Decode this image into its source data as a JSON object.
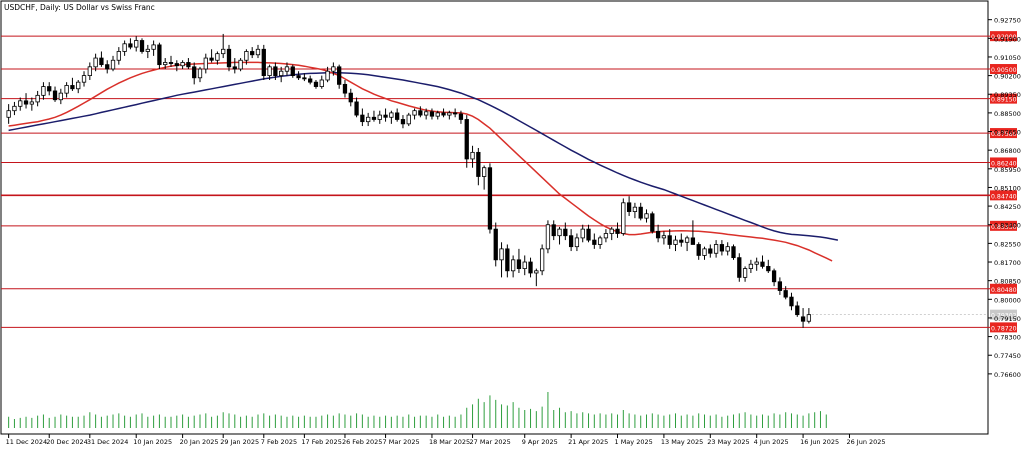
{
  "chart_data": {
    "type": "candlestick",
    "title": "USDCHF, Daily:  US Dollar vs Swiss Franc",
    "grid": false,
    "colors": {
      "frame": "#000000",
      "candle": "#000000",
      "volume": "#2e9e3e",
      "ma_fast": "#d9302a",
      "ma_slow": "#1b1d6b",
      "hline": "#c4141b",
      "hline_label_bg": "#e8251f",
      "hline_label_text": "#ffffff"
    },
    "y_axis": {
      "range": [
        0.755,
        0.931
      ],
      "ticks": [
        "0.92750",
        "0.91900",
        "0.91050",
        "0.90200",
        "0.89350",
        "0.88500",
        "0.87650",
        "0.86800",
        "0.85950",
        "0.85100",
        "0.84250",
        "0.83400",
        "0.82550",
        "0.81700",
        "0.80850",
        "0.80000",
        "0.79150",
        "0.78300",
        "0.77450",
        "0.76600"
      ]
    },
    "x_axis": {
      "ticks": [
        {
          "label": "11 Dec 2024",
          "i": 0
        },
        {
          "label": "20 Dec 2024",
          "i": 7
        },
        {
          "label": "31 Dec 2024",
          "i": 14
        },
        {
          "label": "10 Jan 2025",
          "i": 22
        },
        {
          "label": "20 Jan 2025",
          "i": 30
        },
        {
          "label": "29 Jan 2025",
          "i": 37
        },
        {
          "label": "7 Feb 2025",
          "i": 44
        },
        {
          "label": "17 Feb 2025",
          "i": 51
        },
        {
          "label": "26 Feb 2025",
          "i": 58
        },
        {
          "label": "7 Mar 2025",
          "i": 65
        },
        {
          "label": "18 Mar 2025",
          "i": 73
        },
        {
          "label": "27 Mar 2025",
          "i": 80
        },
        {
          "label": "9 Apr 2025",
          "i": 89
        },
        {
          "label": "21 Apr 2025",
          "i": 97
        },
        {
          "label": "1 May 2025",
          "i": 105
        },
        {
          "label": "13 May 2025",
          "i": 113
        },
        {
          "label": "23 May 2025",
          "i": 121
        },
        {
          "label": "4 Jun 2025",
          "i": 129
        },
        {
          "label": "16 Jun 2025",
          "i": 137
        },
        {
          "label": "26 Jun 2025",
          "i": 145
        }
      ]
    },
    "horizontal_levels": [
      {
        "value": 0.92,
        "label": "0.92000"
      },
      {
        "value": 0.905,
        "label": "0.90500"
      },
      {
        "value": 0.8915,
        "label": "0.89150"
      },
      {
        "value": 0.8758,
        "label": "0.87580"
      },
      {
        "value": 0.8624,
        "label": "0.86240"
      },
      {
        "value": 0.8474,
        "label": "0.84740"
      },
      {
        "value": 0.8335,
        "label": "0.83350"
      },
      {
        "value": 0.8048,
        "label": "0.80480"
      },
      {
        "value": 0.7872,
        "label": "0.78720"
      }
    ],
    "current_price": {
      "value": 0.793,
      "label": "0.79302"
    },
    "ohlc": [
      [
        0.883,
        0.889,
        0.88,
        0.886
      ],
      [
        0.886,
        0.89,
        0.884,
        0.888
      ],
      [
        0.888,
        0.892,
        0.886,
        0.8905
      ],
      [
        0.8905,
        0.894,
        0.887,
        0.889
      ],
      [
        0.889,
        0.892,
        0.886,
        0.89
      ],
      [
        0.89,
        0.895,
        0.888,
        0.893
      ],
      [
        0.893,
        0.899,
        0.891,
        0.897
      ],
      [
        0.897,
        0.899,
        0.893,
        0.895
      ],
      [
        0.895,
        0.897,
        0.89,
        0.891
      ],
      [
        0.891,
        0.896,
        0.889,
        0.894
      ],
      [
        0.894,
        0.899,
        0.892,
        0.8975
      ],
      [
        0.8975,
        0.901,
        0.895,
        0.896
      ],
      [
        0.896,
        0.9,
        0.894,
        0.899
      ],
      [
        0.899,
        0.904,
        0.897,
        0.902
      ],
      [
        0.902,
        0.908,
        0.9,
        0.906
      ],
      [
        0.906,
        0.912,
        0.904,
        0.91
      ],
      [
        0.91,
        0.913,
        0.906,
        0.907
      ],
      [
        0.907,
        0.909,
        0.903,
        0.905
      ],
      [
        0.905,
        0.911,
        0.904,
        0.909
      ],
      [
        0.909,
        0.915,
        0.907,
        0.913
      ],
      [
        0.913,
        0.918,
        0.911,
        0.9165
      ],
      [
        0.9165,
        0.919,
        0.914,
        0.915
      ],
      [
        0.915,
        0.92,
        0.913,
        0.918
      ],
      [
        0.918,
        0.919,
        0.912,
        0.913
      ],
      [
        0.913,
        0.916,
        0.91,
        0.914
      ],
      [
        0.914,
        0.918,
        0.911,
        0.916
      ],
      [
        0.916,
        0.917,
        0.905,
        0.907
      ],
      [
        0.907,
        0.91,
        0.905,
        0.908
      ],
      [
        0.908,
        0.911,
        0.906,
        0.9075
      ],
      [
        0.9075,
        0.909,
        0.904,
        0.9065
      ],
      [
        0.9065,
        0.909,
        0.905,
        0.908
      ],
      [
        0.908,
        0.91,
        0.905,
        0.906
      ],
      [
        0.906,
        0.908,
        0.898,
        0.901
      ],
      [
        0.901,
        0.906,
        0.899,
        0.905
      ],
      [
        0.905,
        0.912,
        0.903,
        0.91
      ],
      [
        0.91,
        0.914,
        0.908,
        0.909
      ],
      [
        0.909,
        0.913,
        0.907,
        0.912
      ],
      [
        0.912,
        0.921,
        0.91,
        0.914
      ],
      [
        0.914,
        0.916,
        0.904,
        0.906
      ],
      [
        0.906,
        0.91,
        0.903,
        0.905
      ],
      [
        0.905,
        0.91,
        0.904,
        0.909
      ],
      [
        0.909,
        0.914,
        0.907,
        0.913
      ],
      [
        0.913,
        0.915,
        0.91,
        0.9115
      ],
      [
        0.9115,
        0.916,
        0.91,
        0.914
      ],
      [
        0.914,
        0.916,
        0.9,
        0.902
      ],
      [
        0.902,
        0.907,
        0.9,
        0.906
      ],
      [
        0.906,
        0.908,
        0.9,
        0.902
      ],
      [
        0.902,
        0.906,
        0.899,
        0.904
      ],
      [
        0.904,
        0.908,
        0.902,
        0.906
      ],
      [
        0.906,
        0.907,
        0.901,
        0.902
      ],
      [
        0.902,
        0.904,
        0.9,
        0.901
      ],
      [
        0.901,
        0.903,
        0.8995,
        0.9005
      ],
      [
        0.9005,
        0.902,
        0.898,
        0.899
      ],
      [
        0.899,
        0.9,
        0.896,
        0.897
      ],
      [
        0.897,
        0.902,
        0.896,
        0.9
      ],
      [
        0.9,
        0.906,
        0.899,
        0.904
      ],
      [
        0.904,
        0.908,
        0.902,
        0.906
      ],
      [
        0.906,
        0.907,
        0.896,
        0.898
      ],
      [
        0.898,
        0.9,
        0.892,
        0.894
      ],
      [
        0.894,
        0.896,
        0.888,
        0.89
      ],
      [
        0.89,
        0.892,
        0.883,
        0.884
      ],
      [
        0.884,
        0.887,
        0.879,
        0.881
      ],
      [
        0.881,
        0.885,
        0.879,
        0.883
      ],
      [
        0.883,
        0.886,
        0.881,
        0.882
      ],
      [
        0.882,
        0.886,
        0.88,
        0.884
      ],
      [
        0.884,
        0.887,
        0.881,
        0.883
      ],
      [
        0.883,
        0.886,
        0.88,
        0.885
      ],
      [
        0.885,
        0.887,
        0.881,
        0.882
      ],
      [
        0.882,
        0.884,
        0.878,
        0.88
      ],
      [
        0.88,
        0.885,
        0.879,
        0.884
      ],
      [
        0.884,
        0.887,
        0.882,
        0.886
      ],
      [
        0.886,
        0.888,
        0.883,
        0.884
      ],
      [
        0.884,
        0.887,
        0.882,
        0.8855
      ],
      [
        0.8855,
        0.887,
        0.882,
        0.8835
      ],
      [
        0.8835,
        0.886,
        0.882,
        0.885
      ],
      [
        0.885,
        0.887,
        0.883,
        0.884
      ],
      [
        0.884,
        0.886,
        0.882,
        0.885
      ],
      [
        0.885,
        0.887,
        0.883,
        0.8845
      ],
      [
        0.8845,
        0.886,
        0.88,
        0.882
      ],
      [
        0.882,
        0.884,
        0.86,
        0.864
      ],
      [
        0.864,
        0.87,
        0.86,
        0.867
      ],
      [
        0.867,
        0.869,
        0.852,
        0.856
      ],
      [
        0.856,
        0.861,
        0.85,
        0.86
      ],
      [
        0.86,
        0.862,
        0.83,
        0.832
      ],
      [
        0.832,
        0.835,
        0.815,
        0.818
      ],
      [
        0.818,
        0.826,
        0.81,
        0.823
      ],
      [
        0.823,
        0.825,
        0.81,
        0.813
      ],
      [
        0.813,
        0.82,
        0.81,
        0.818
      ],
      [
        0.818,
        0.823,
        0.812,
        0.814
      ],
      [
        0.814,
        0.82,
        0.811,
        0.817
      ],
      [
        0.817,
        0.819,
        0.81,
        0.812
      ],
      [
        0.812,
        0.814,
        0.806,
        0.813
      ],
      [
        0.813,
        0.825,
        0.811,
        0.823
      ],
      [
        0.823,
        0.836,
        0.821,
        0.834
      ],
      [
        0.834,
        0.836,
        0.827,
        0.829
      ],
      [
        0.829,
        0.833,
        0.825,
        0.832
      ],
      [
        0.832,
        0.835,
        0.827,
        0.829
      ],
      [
        0.829,
        0.832,
        0.822,
        0.824
      ],
      [
        0.824,
        0.83,
        0.822,
        0.828
      ],
      [
        0.828,
        0.834,
        0.826,
        0.832
      ],
      [
        0.832,
        0.834,
        0.826,
        0.827
      ],
      [
        0.827,
        0.83,
        0.823,
        0.825
      ],
      [
        0.825,
        0.829,
        0.823,
        0.828
      ],
      [
        0.828,
        0.832,
        0.826,
        0.83
      ],
      [
        0.83,
        0.833,
        0.827,
        0.832
      ],
      [
        0.832,
        0.835,
        0.828,
        0.83
      ],
      [
        0.83,
        0.846,
        0.829,
        0.844
      ],
      [
        0.844,
        0.847,
        0.838,
        0.84
      ],
      [
        0.84,
        0.844,
        0.837,
        0.842
      ],
      [
        0.842,
        0.844,
        0.836,
        0.837
      ],
      [
        0.837,
        0.841,
        0.835,
        0.839
      ],
      [
        0.839,
        0.84,
        0.83,
        0.831
      ],
      [
        0.831,
        0.834,
        0.826,
        0.828
      ],
      [
        0.828,
        0.831,
        0.825,
        0.829
      ],
      [
        0.829,
        0.832,
        0.823,
        0.825
      ],
      [
        0.825,
        0.829,
        0.822,
        0.827
      ],
      [
        0.827,
        0.83,
        0.824,
        0.826
      ],
      [
        0.826,
        0.829,
        0.822,
        0.828
      ],
      [
        0.828,
        0.836,
        0.826,
        0.825
      ],
      [
        0.825,
        0.826,
        0.818,
        0.82
      ],
      [
        0.82,
        0.824,
        0.818,
        0.823
      ],
      [
        0.823,
        0.825,
        0.819,
        0.821
      ],
      [
        0.821,
        0.827,
        0.819,
        0.825
      ],
      [
        0.825,
        0.827,
        0.82,
        0.822
      ],
      [
        0.822,
        0.826,
        0.82,
        0.824
      ],
      [
        0.824,
        0.825,
        0.818,
        0.819
      ],
      [
        0.819,
        0.821,
        0.808,
        0.81
      ],
      [
        0.81,
        0.815,
        0.808,
        0.814
      ],
      [
        0.814,
        0.818,
        0.812,
        0.816
      ],
      [
        0.816,
        0.819,
        0.813,
        0.817
      ],
      [
        0.817,
        0.82,
        0.814,
        0.815
      ],
      [
        0.815,
        0.818,
        0.812,
        0.813
      ],
      [
        0.813,
        0.814,
        0.806,
        0.808
      ],
      [
        0.808,
        0.81,
        0.802,
        0.804
      ],
      [
        0.804,
        0.806,
        0.8,
        0.801
      ],
      [
        0.801,
        0.803,
        0.795,
        0.797
      ],
      [
        0.797,
        0.799,
        0.792,
        0.793
      ],
      [
        0.792,
        0.796,
        0.787,
        0.79
      ],
      [
        0.79,
        0.796,
        0.789,
        0.793
      ]
    ],
    "ma_fast": [
      0.879,
      0.8794,
      0.8798,
      0.8802,
      0.8806,
      0.881,
      0.8816,
      0.8822,
      0.883,
      0.884,
      0.8852,
      0.8866,
      0.888,
      0.8895,
      0.891,
      0.8926,
      0.8942,
      0.8958,
      0.8972,
      0.8986,
      0.8998,
      0.901,
      0.902,
      0.903,
      0.9038,
      0.9045,
      0.9052,
      0.9058,
      0.9063,
      0.9067,
      0.907,
      0.9072,
      0.9073,
      0.9074,
      0.9075,
      0.9076,
      0.9077,
      0.9078,
      0.9079,
      0.908,
      0.908,
      0.908,
      0.908,
      0.908,
      0.9079,
      0.9078,
      0.9077,
      0.9075,
      0.9073,
      0.907,
      0.9067,
      0.9063,
      0.9058,
      0.9053,
      0.9048,
      0.904,
      0.903,
      0.902,
      0.9005,
      0.899,
      0.8975,
      0.896,
      0.8948,
      0.8935,
      0.8925,
      0.8915,
      0.8905,
      0.8898,
      0.889,
      0.8882,
      0.8875,
      0.8868,
      0.8862,
      0.8858,
      0.8855,
      0.8853,
      0.8852,
      0.8851,
      0.885,
      0.8845,
      0.8835,
      0.882,
      0.88,
      0.878,
      0.8755,
      0.873,
      0.8705,
      0.868,
      0.8655,
      0.863,
      0.8605,
      0.858,
      0.8555,
      0.853,
      0.8505,
      0.848,
      0.846,
      0.844,
      0.842,
      0.84,
      0.838,
      0.8362,
      0.8345,
      0.833,
      0.8318,
      0.8308,
      0.83,
      0.8295,
      0.8295,
      0.8298,
      0.8302,
      0.8306,
      0.8308,
      0.831,
      0.8311,
      0.8312,
      0.8313,
      0.8312,
      0.8311,
      0.831,
      0.8308,
      0.8306,
      0.8303,
      0.83,
      0.8296,
      0.8293,
      0.829,
      0.8287,
      0.8284,
      0.8281,
      0.8278,
      0.8274,
      0.827,
      0.8265,
      0.826,
      0.8252,
      0.8245,
      0.8235,
      0.8225,
      0.8212,
      0.82,
      0.8188,
      0.8175
    ],
    "ma_slow_start_index": 0,
    "ma_slow": [
      0.877,
      0.8775,
      0.878,
      0.8785,
      0.879,
      0.8795,
      0.88,
      0.8805,
      0.881,
      0.8815,
      0.882,
      0.8825,
      0.883,
      0.8835,
      0.884,
      0.8846,
      0.8852,
      0.8858,
      0.8864,
      0.887,
      0.8876,
      0.8882,
      0.8888,
      0.8894,
      0.89,
      0.8906,
      0.8912,
      0.8918,
      0.8924,
      0.893,
      0.8935,
      0.894,
      0.8945,
      0.895,
      0.8955,
      0.896,
      0.8965,
      0.897,
      0.8975,
      0.898,
      0.8985,
      0.899,
      0.8995,
      0.9,
      0.9005,
      0.9009,
      0.9013,
      0.9017,
      0.902,
      0.9023,
      0.9026,
      0.9028,
      0.903,
      0.9031,
      0.9032,
      0.9033,
      0.9033,
      0.9033,
      0.9032,
      0.9031,
      0.9029,
      0.9027,
      0.9024,
      0.902,
      0.9016,
      0.9012,
      0.9008,
      0.9004,
      0.9,
      0.8995,
      0.899,
      0.8985,
      0.898,
      0.8975,
      0.897,
      0.8963,
      0.8956,
      0.8948,
      0.894,
      0.893,
      0.892,
      0.891,
      0.8898,
      0.8885,
      0.8872,
      0.8858,
      0.8844,
      0.883,
      0.8815,
      0.88,
      0.8785,
      0.877,
      0.8755,
      0.874,
      0.8725,
      0.871,
      0.8695,
      0.868,
      0.8666,
      0.8652,
      0.8638,
      0.8625,
      0.8612,
      0.86,
      0.8588,
      0.8576,
      0.8565,
      0.8554,
      0.8544,
      0.8534,
      0.8525,
      0.8516,
      0.8508,
      0.85,
      0.849,
      0.848,
      0.847,
      0.846,
      0.845,
      0.844,
      0.843,
      0.842,
      0.841,
      0.84,
      0.839,
      0.838,
      0.837,
      0.836,
      0.835,
      0.834,
      0.833,
      0.832,
      0.8312,
      0.8305,
      0.83,
      0.8296,
      0.8294,
      0.8292,
      0.829,
      0.8287,
      0.8284,
      0.828,
      0.8275,
      0.827
    ],
    "volume": [
      1,
      0.8,
      0.9,
      1,
      0.9,
      1.1,
      1.2,
      0.9,
      1,
      1.2,
      1.1,
      1,
      1,
      1.1,
      1.4,
      1.2,
      1,
      1.1,
      1.2,
      1.3,
      1.1,
      1,
      1.2,
      1.3,
      1,
      1.1,
      1.2,
      1,
      1,
      1.1,
      1.2,
      1,
      1.1,
      1.2,
      1.3,
      1,
      1.1,
      1.4,
      1.3,
      1.2,
      1,
      1.1,
      1,
      1.2,
      1.3,
      1.1,
      1.2,
      1.1,
      1,
      1.1,
      1,
      1.1,
      1,
      1,
      1.1,
      1.2,
      1.1,
      1.3,
      1.2,
      1.1,
      1.3,
      1.2,
      1,
      1.1,
      1,
      1.1,
      1,
      1.1,
      1,
      1.2,
      1,
      1.1,
      1.1,
      1,
      1.2,
      1,
      1.1,
      1,
      1.2,
      1.8,
      2.1,
      2.6,
      2.3,
      2.9,
      2.5,
      2.1,
      2.0,
      2.3,
      1.8,
      1.6,
      1.7,
      1.5,
      1.9,
      3.2,
      1.6,
      1.8,
      1.4,
      1.5,
      1.3,
      1.4,
      1.3,
      1.2,
      1.3,
      1.2,
      1.3,
      1.2,
      1.6,
      1.3,
      1.2,
      1.1,
      1.2,
      1.3,
      1.2,
      1.1,
      1.2,
      1.3,
      1.1,
      1.2,
      1.1,
      1.3,
      1.2,
      1.1,
      1.2,
      1,
      1.1,
      1.2,
      1.3,
      1.4,
      1.2,
      1.1,
      1.2,
      1.1,
      1.3,
      1.2,
      1.4,
      1.3,
      1.2,
      1.1,
      1.3,
      1.4,
      1.5,
      1.2
    ]
  }
}
